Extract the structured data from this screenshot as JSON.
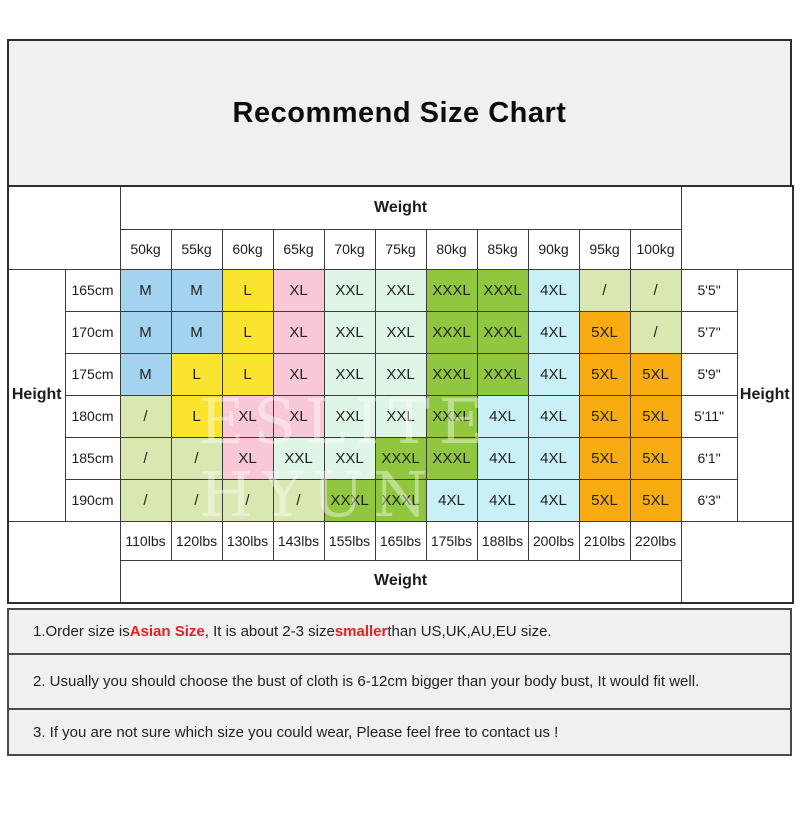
{
  "title": "Recommend Size Chart",
  "watermark": "ESLITE HYUN",
  "colors": {
    "title_bg": "#f0f0f0",
    "note_bg": "#f0f0f0",
    "highlight_red": "#ed1c24",
    "size_colors": {
      "M": "#a3d3ee",
      "L": "#fbe42d",
      "XL": "#f8c8d7",
      "XXL": "#dff5e6",
      "XXXL": "#90c73e",
      "4XL": "#c9f0f6",
      "5XL": "#f8ac12",
      "/": "#d8e8b0"
    }
  },
  "chart_data": {
    "type": "table",
    "title": "Recommend Size Chart",
    "weight_axis_label_top": "Weight",
    "weight_axis_label_bottom": "Weight",
    "height_axis_label_left": "Height",
    "height_axis_label_right": "Height",
    "weights_kg": [
      "50kg",
      "55kg",
      "60kg",
      "65kg",
      "70kg",
      "75kg",
      "80kg",
      "85kg",
      "90kg",
      "95kg",
      "100kg"
    ],
    "weights_lbs": [
      "110lbs",
      "120lbs",
      "130lbs",
      "143lbs",
      "155lbs",
      "165lbs",
      "175lbs",
      "188lbs",
      "200lbs",
      "210lbs",
      "220lbs"
    ],
    "rows": [
      {
        "height_cm": "165cm",
        "height_ft": "5'5\"",
        "sizes": [
          "M",
          "M",
          "L",
          "XL",
          "XXL",
          "XXL",
          "XXXL",
          "XXXL",
          "4XL",
          "/",
          "/"
        ]
      },
      {
        "height_cm": "170cm",
        "height_ft": "5'7\"",
        "sizes": [
          "M",
          "M",
          "L",
          "XL",
          "XXL",
          "XXL",
          "XXXL",
          "XXXL",
          "4XL",
          "5XL",
          "/"
        ]
      },
      {
        "height_cm": "175cm",
        "height_ft": "5'9\"",
        "sizes": [
          "M",
          "L",
          "L",
          "XL",
          "XXL",
          "XXL",
          "XXXL",
          "XXXL",
          "4XL",
          "5XL",
          "5XL"
        ]
      },
      {
        "height_cm": "180cm",
        "height_ft": "5'11\"",
        "sizes": [
          "/",
          "L",
          "XL",
          "XL",
          "XXL",
          "XXL",
          "XXXL",
          "4XL",
          "4XL",
          "5XL",
          "5XL"
        ]
      },
      {
        "height_cm": "185cm",
        "height_ft": "6'1\"",
        "sizes": [
          "/",
          "/",
          "XL",
          "XXL",
          "XXL",
          "XXXL",
          "XXXL",
          "4XL",
          "4XL",
          "5XL",
          "5XL"
        ]
      },
      {
        "height_cm": "190cm",
        "height_ft": "6'3\"",
        "sizes": [
          "/",
          "/",
          "/",
          "/",
          "XXXL",
          "XXXL",
          "4XL",
          "4XL",
          "4XL",
          "5XL",
          "5XL"
        ]
      }
    ]
  },
  "notes": [
    {
      "segments": [
        {
          "text": "1.Order size is ",
          "highlight": false
        },
        {
          "text": "Asian Size",
          "highlight": true
        },
        {
          "text": ", It is about 2-3 size ",
          "highlight": false
        },
        {
          "text": "smaller",
          "highlight": true
        },
        {
          "text": " than US,UK,AU,EU size.",
          "highlight": false
        }
      ]
    },
    {
      "segments": [
        {
          "text": "2. Usually you should choose the bust of cloth is 6-12cm bigger than your body bust, It would fit well.",
          "highlight": false
        }
      ]
    },
    {
      "segments": [
        {
          "text": "3. If you are not sure which size you could wear, Please feel free to contact us !",
          "highlight": false
        }
      ]
    }
  ]
}
